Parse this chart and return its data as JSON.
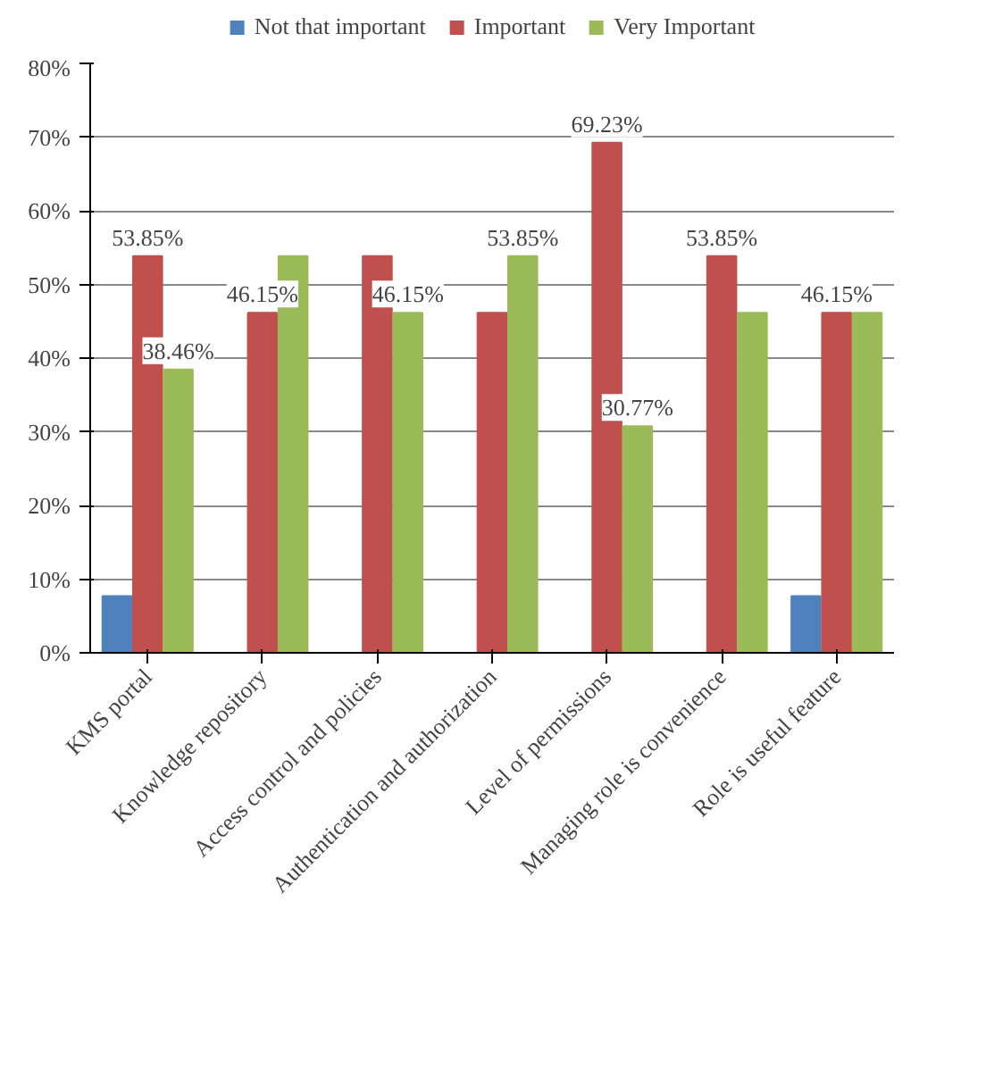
{
  "chart_data": {
    "type": "bar",
    "categories": [
      "KMS portal",
      "Knowledge repository",
      "Access control and policies",
      "Authentication and authorization",
      "Level of permissions",
      "Managing role is convenience",
      "Role is useful feature"
    ],
    "series": [
      {
        "name": "Not that important",
        "color": "#4f81bd",
        "values": [
          7.69,
          0,
          0,
          0,
          0,
          0,
          7.69
        ]
      },
      {
        "name": "Important",
        "color": "#c0504d",
        "values": [
          53.85,
          46.15,
          53.85,
          46.15,
          69.23,
          53.85,
          46.15
        ],
        "value_labels": [
          "53.85%",
          "46.15%",
          null,
          null,
          "69.23%",
          "53.85%",
          "46.15%"
        ]
      },
      {
        "name": "Very Important",
        "color": "#9bbb59",
        "values": [
          38.46,
          53.85,
          46.15,
          53.85,
          30.77,
          46.15,
          46.15
        ],
        "value_labels": [
          "38.46%",
          null,
          "46.15%",
          "53.85%",
          "30.77%",
          null,
          null
        ]
      }
    ],
    "ylim": [
      0,
      80
    ],
    "yticks": [
      {
        "value": 0,
        "label": "0%"
      },
      {
        "value": 10,
        "label": "10%"
      },
      {
        "value": 20,
        "label": "20%"
      },
      {
        "value": 30,
        "label": "30%"
      },
      {
        "value": 40,
        "label": "40%"
      },
      {
        "value": 50,
        "label": "50%"
      },
      {
        "value": 60,
        "label": "60%"
      },
      {
        "value": 70,
        "label": "70%"
      },
      {
        "value": 80,
        "label": "80%"
      }
    ],
    "grid": "y",
    "legend": "top"
  }
}
